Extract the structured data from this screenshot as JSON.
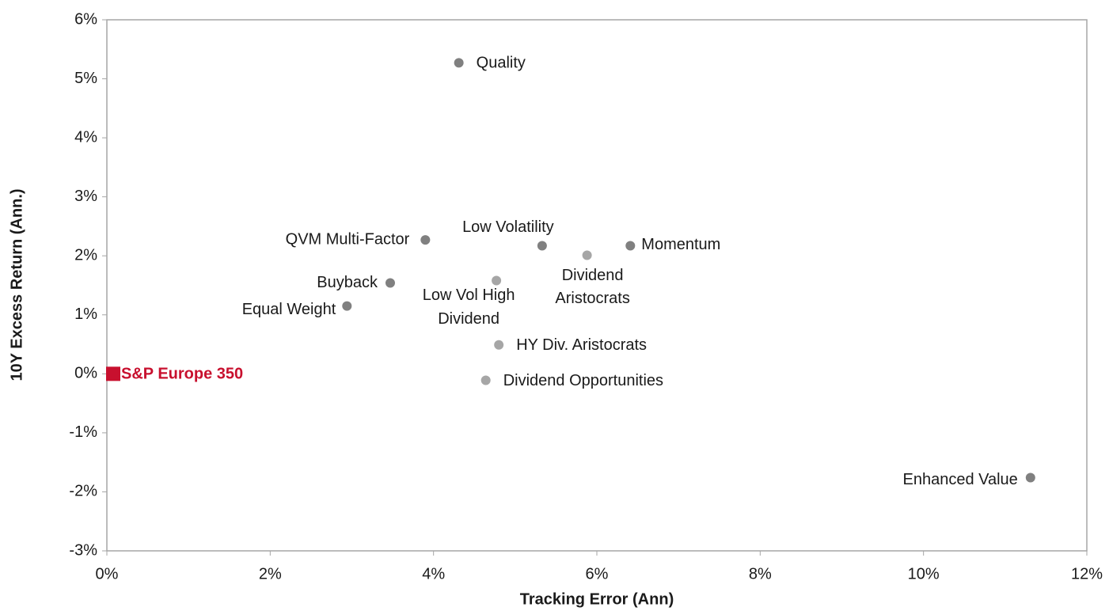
{
  "chart_data": {
    "type": "scatter",
    "x_label": "Tracking Error (Ann)",
    "y_label": "10Y Excess Return (Ann.)",
    "xlim": [
      0,
      12
    ],
    "xticks": [
      {
        "value": 0,
        "label": "0%"
      },
      {
        "value": 2,
        "label": "2%"
      },
      {
        "value": 4,
        "label": "4%"
      },
      {
        "value": 6,
        "label": "6%"
      },
      {
        "value": 8,
        "label": "8%"
      },
      {
        "value": 10,
        "label": "10%"
      },
      {
        "value": 12,
        "label": "12%"
      }
    ],
    "ylim": [
      -3,
      6
    ],
    "yticks": [
      {
        "value": -3,
        "label": "-3%"
      },
      {
        "value": -2,
        "label": "-2%"
      },
      {
        "value": -1,
        "label": "-1%"
      },
      {
        "value": 0,
        "label": "0%"
      },
      {
        "value": 1,
        "label": "1%"
      },
      {
        "value": 2,
        "label": "2%"
      },
      {
        "value": 3,
        "label": "3%"
      },
      {
        "value": 4,
        "label": "4%"
      },
      {
        "value": 5,
        "label": "5%"
      },
      {
        "value": 6,
        "label": "6%"
      }
    ],
    "points": [
      {
        "label": [
          "Quality"
        ],
        "x": 4.31,
        "y": 5.27,
        "color": "#808080"
      },
      {
        "label": [
          "QVM Multi-Factor"
        ],
        "x": 3.9,
        "y": 2.27,
        "color": "#808080"
      },
      {
        "label": [
          "Low Volatility"
        ],
        "x": 5.33,
        "y": 2.17,
        "color": "#808080"
      },
      {
        "label": [
          "Dividend",
          "Aristocrats"
        ],
        "x": 5.88,
        "y": 2.01,
        "color": "#a6a6a6"
      },
      {
        "label": [
          "Momentum"
        ],
        "x": 6.41,
        "y": 2.17,
        "color": "#808080"
      },
      {
        "label": [
          "Buyback"
        ],
        "x": 3.47,
        "y": 1.54,
        "color": "#808080"
      },
      {
        "label": [
          "Low Vol High",
          "Dividend"
        ],
        "x": 4.77,
        "y": 1.58,
        "color": "#a6a6a6"
      },
      {
        "label": [
          "Equal Weight"
        ],
        "x": 2.94,
        "y": 1.15,
        "color": "#808080"
      },
      {
        "label": [
          "HY Div. Aristocrats"
        ],
        "x": 4.8,
        "y": 0.49,
        "color": "#a6a6a6"
      },
      {
        "label": [
          "Dividend Opportunities"
        ],
        "x": 4.64,
        "y": -0.11,
        "color": "#a6a6a6"
      },
      {
        "label": [
          "Enhanced Value"
        ],
        "x": 11.31,
        "y": -1.76,
        "color": "#808080"
      },
      {
        "label": [
          "S&P Europe 350"
        ],
        "x": 0,
        "y": 0,
        "color": "#c8102e",
        "marker": "square"
      }
    ]
  }
}
